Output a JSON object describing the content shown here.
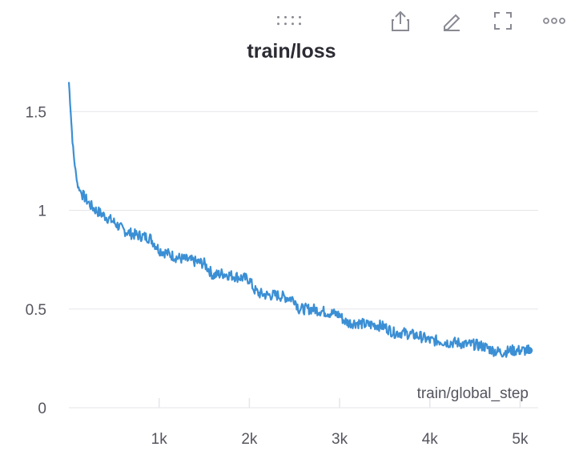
{
  "toolbar": {
    "icons": [
      "drag-handle-icon",
      "share-icon",
      "edit-icon",
      "fullscreen-icon",
      "more-icon"
    ]
  },
  "chart_data": {
    "type": "line",
    "title": "train/loss",
    "xlabel": "train/global_step",
    "ylabel": "",
    "xlim": [
      0,
      5200
    ],
    "ylim": [
      0,
      1.7
    ],
    "grid": true,
    "x_ticks": [
      1000,
      2000,
      3000,
      4000,
      5000
    ],
    "x_tick_labels": [
      "1k",
      "2k",
      "3k",
      "4k",
      "5k"
    ],
    "y_ticks": [
      0,
      0.5,
      1,
      1.5
    ],
    "y_tick_labels": [
      "0",
      "0.5",
      "1",
      "1.5"
    ],
    "color": "#3b8fd4",
    "series": [
      {
        "x": [
          0,
          20,
          40,
          60,
          80,
          100,
          150,
          200,
          250,
          300,
          400,
          500,
          600,
          700,
          800,
          900,
          1000,
          1100,
          1200,
          1300,
          1400,
          1500,
          1600,
          1700,
          1800,
          1900,
          2000,
          2050,
          2100,
          2200,
          2300,
          2400,
          2500,
          2550,
          2600,
          2700,
          2800,
          2900,
          3000,
          3050,
          3100,
          3200,
          3300,
          3400,
          3500,
          3600,
          3700,
          3800,
          3900,
          4000,
          4100,
          4200,
          4300,
          4400,
          4500,
          4600,
          4700,
          4800,
          4900,
          5000,
          5100
        ],
        "y": [
          1.65,
          1.5,
          1.35,
          1.25,
          1.18,
          1.12,
          1.08,
          1.05,
          1.02,
          1.0,
          0.97,
          0.94,
          0.9,
          0.88,
          0.87,
          0.86,
          0.8,
          0.78,
          0.76,
          0.75,
          0.74,
          0.73,
          0.67,
          0.68,
          0.67,
          0.66,
          0.65,
          0.6,
          0.58,
          0.57,
          0.57,
          0.56,
          0.55,
          0.5,
          0.5,
          0.5,
          0.49,
          0.48,
          0.47,
          0.44,
          0.43,
          0.43,
          0.42,
          0.42,
          0.41,
          0.38,
          0.38,
          0.37,
          0.36,
          0.34,
          0.34,
          0.33,
          0.33,
          0.32,
          0.32,
          0.31,
          0.29,
          0.28,
          0.29,
          0.29,
          0.29
        ]
      }
    ]
  }
}
